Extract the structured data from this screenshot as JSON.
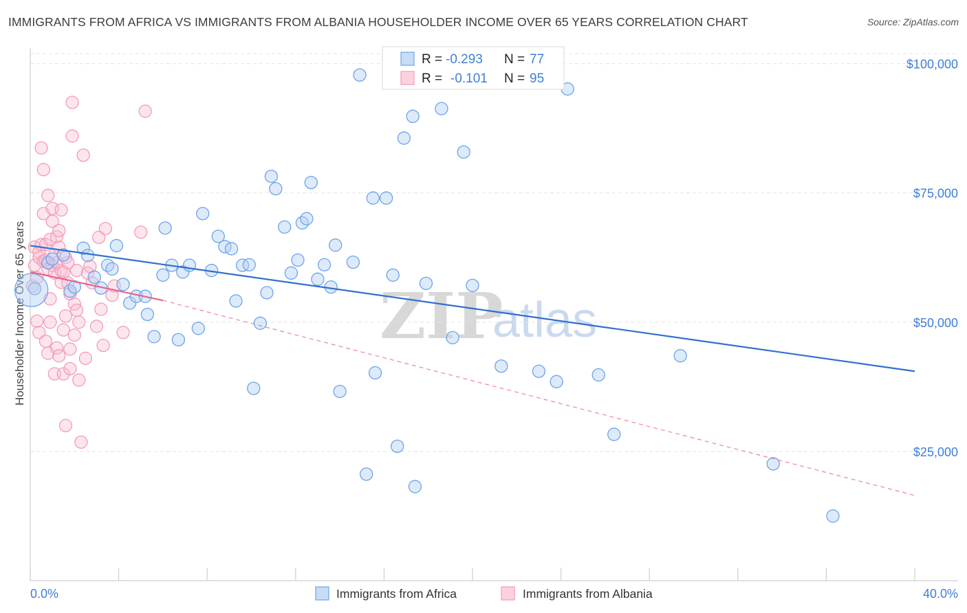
{
  "title": "IMMIGRANTS FROM AFRICA VS IMMIGRANTS FROM ALBANIA HOUSEHOLDER INCOME OVER 65 YEARS CORRELATION CHART",
  "source": "Source: ZipAtlas.com",
  "watermark": {
    "zip": "ZIP",
    "atlas": "atlas"
  },
  "stats": {
    "africa": {
      "r_label": "R =",
      "r_value": "-0.293",
      "n_label": "N =",
      "n_value": "77",
      "color": "#6ea3e8"
    },
    "albania": {
      "r_label": "R =",
      "r_value": "-0.101",
      "n_label": "N =",
      "n_value": "95",
      "color": "#f49bb8"
    }
  },
  "legend": {
    "africa": "Immigrants from Africa",
    "albania": "Immigrants from Albania"
  },
  "chart_data": {
    "type": "scatter",
    "title": "IMMIGRANTS FROM AFRICA VS IMMIGRANTS FROM ALBANIA HOUSEHOLDER INCOME OVER 65 YEARS CORRELATION CHART",
    "xlabel": "",
    "ylabel": "Householder Income Over 65 years",
    "xlim": [
      0,
      40
    ],
    "ylim": [
      0,
      103000
    ],
    "x_tick_labels": [
      "0.0%",
      "40.0%"
    ],
    "y_ticks": [
      25000,
      50000,
      75000,
      100000
    ],
    "y_tick_labels": [
      "$25,000",
      "$50,000",
      "$75,000",
      "$100,000"
    ],
    "grid": true,
    "legend_position": "bottom-center",
    "series": [
      {
        "name": "Immigrants from Africa",
        "color": "#6ea3e8",
        "trend": {
          "x": [
            0,
            40
          ],
          "y": [
            64800,
            40500
          ],
          "style": "solid",
          "color": "#2f6fcf"
        },
        "points": [
          [
            0.2,
            56.5
          ],
          [
            0.8,
            61.5
          ],
          [
            1.0,
            62.2
          ],
          [
            1.5,
            63.0
          ],
          [
            1.8,
            56.0
          ],
          [
            2.0,
            56.8
          ],
          [
            2.4,
            64.3
          ],
          [
            2.6,
            62.9
          ],
          [
            2.9,
            58.7
          ],
          [
            3.2,
            56.6
          ],
          [
            3.5,
            61.0
          ],
          [
            3.7,
            60.3
          ],
          [
            3.9,
            64.8
          ],
          [
            4.2,
            57.3
          ],
          [
            4.5,
            53.7
          ],
          [
            4.8,
            55.0
          ],
          [
            5.2,
            55.0
          ],
          [
            5.3,
            51.5
          ],
          [
            5.6,
            47.2
          ],
          [
            6.0,
            59.1
          ],
          [
            6.1,
            68.2
          ],
          [
            6.4,
            61.0
          ],
          [
            6.7,
            46.6
          ],
          [
            6.9,
            59.7
          ],
          [
            7.2,
            61.0
          ],
          [
            7.6,
            48.8
          ],
          [
            7.8,
            71.0
          ],
          [
            8.2,
            60.0
          ],
          [
            8.5,
            66.6
          ],
          [
            8.8,
            64.6
          ],
          [
            9.1,
            64.2
          ],
          [
            9.3,
            54.1
          ],
          [
            9.6,
            61.0
          ],
          [
            9.9,
            61.1
          ],
          [
            10.1,
            37.2
          ],
          [
            10.4,
            49.8
          ],
          [
            10.7,
            55.7
          ],
          [
            10.9,
            78.2
          ],
          [
            11.1,
            75.8
          ],
          [
            11.5,
            68.4
          ],
          [
            11.8,
            59.5
          ],
          [
            12.1,
            62.0
          ],
          [
            12.3,
            69.2
          ],
          [
            12.5,
            70.0
          ],
          [
            12.7,
            77.0
          ],
          [
            13.0,
            58.3
          ],
          [
            13.3,
            61.1
          ],
          [
            13.6,
            56.8
          ],
          [
            13.8,
            64.9
          ],
          [
            14.0,
            36.6
          ],
          [
            14.6,
            61.6
          ],
          [
            14.9,
            97.8
          ],
          [
            15.2,
            20.6
          ],
          [
            15.5,
            74.0
          ],
          [
            15.6,
            40.2
          ],
          [
            16.1,
            74.0
          ],
          [
            16.4,
            59.1
          ],
          [
            16.6,
            26.0
          ],
          [
            16.9,
            85.6
          ],
          [
            17.4,
            18.2
          ],
          [
            17.3,
            89.8
          ],
          [
            17.9,
            57.5
          ],
          [
            18.6,
            91.3
          ],
          [
            19.1,
            47.0
          ],
          [
            19.6,
            82.9
          ],
          [
            20.0,
            57.1
          ],
          [
            21.3,
            41.5
          ],
          [
            23.0,
            40.5
          ],
          [
            23.8,
            38.5
          ],
          [
            24.3,
            95.1
          ],
          [
            25.7,
            39.8
          ],
          [
            26.4,
            28.3
          ],
          [
            29.4,
            43.5
          ],
          [
            33.6,
            22.6
          ],
          [
            36.3,
            12.5
          ]
        ]
      },
      {
        "name": "Immigrants from Albania",
        "color": "#f49bb8",
        "trend": {
          "x": [
            0,
            6
          ],
          "y": [
            59700,
            54200
          ],
          "style": "solid",
          "color": "#e8638f",
          "extension": {
            "x": [
              6,
              40
            ],
            "y": [
              54200,
              16500
            ],
            "style": "dashed"
          }
        },
        "points": [
          [
            0.1,
            57.0
          ],
          [
            0.2,
            61.0
          ],
          [
            0.2,
            64.5
          ],
          [
            0.3,
            50.2
          ],
          [
            0.3,
            58.6
          ],
          [
            0.4,
            62.5
          ],
          [
            0.4,
            48.0
          ],
          [
            0.4,
            63.5
          ],
          [
            0.5,
            65.0
          ],
          [
            0.5,
            83.7
          ],
          [
            0.6,
            61.8
          ],
          [
            0.6,
            71.0
          ],
          [
            0.6,
            79.5
          ],
          [
            0.7,
            62.0
          ],
          [
            0.7,
            65.0
          ],
          [
            0.7,
            46.3
          ],
          [
            0.8,
            44.0
          ],
          [
            0.8,
            74.5
          ],
          [
            0.8,
            60.3
          ],
          [
            0.9,
            50.0
          ],
          [
            0.9,
            66.0
          ],
          [
            0.9,
            54.5
          ],
          [
            1.0,
            61.0
          ],
          [
            1.0,
            69.5
          ],
          [
            1.0,
            72.0
          ],
          [
            1.1,
            59.5
          ],
          [
            1.1,
            63.0
          ],
          [
            1.1,
            40.0
          ],
          [
            1.2,
            66.5
          ],
          [
            1.2,
            61.5
          ],
          [
            1.2,
            45.0
          ],
          [
            1.3,
            67.7
          ],
          [
            1.3,
            64.5
          ],
          [
            1.3,
            43.5
          ],
          [
            1.4,
            60.0
          ],
          [
            1.4,
            71.7
          ],
          [
            1.4,
            57.7
          ],
          [
            1.5,
            40.0
          ],
          [
            1.5,
            59.7
          ],
          [
            1.5,
            48.5
          ],
          [
            1.6,
            62.5
          ],
          [
            1.6,
            30.0
          ],
          [
            1.6,
            51.2
          ],
          [
            1.7,
            61.5
          ],
          [
            1.7,
            57.6
          ],
          [
            1.8,
            55.5
          ],
          [
            1.8,
            41.0
          ],
          [
            1.8,
            44.8
          ],
          [
            1.9,
            92.5
          ],
          [
            1.9,
            86.0
          ],
          [
            2.0,
            53.5
          ],
          [
            2.0,
            47.5
          ],
          [
            2.1,
            52.3
          ],
          [
            2.1,
            60.0
          ],
          [
            2.2,
            50.0
          ],
          [
            2.2,
            38.8
          ],
          [
            2.3,
            26.8
          ],
          [
            2.4,
            82.3
          ],
          [
            2.5,
            43.0
          ],
          [
            2.6,
            59.5
          ],
          [
            2.7,
            60.8
          ],
          [
            2.8,
            57.6
          ],
          [
            3.0,
            49.2
          ],
          [
            3.1,
            66.4
          ],
          [
            3.2,
            52.5
          ],
          [
            3.3,
            45.5
          ],
          [
            3.4,
            68.1
          ],
          [
            3.7,
            55.2
          ],
          [
            3.8,
            57.0
          ],
          [
            4.2,
            48.0
          ],
          [
            5.0,
            67.4
          ],
          [
            5.2,
            90.8
          ]
        ]
      }
    ]
  }
}
